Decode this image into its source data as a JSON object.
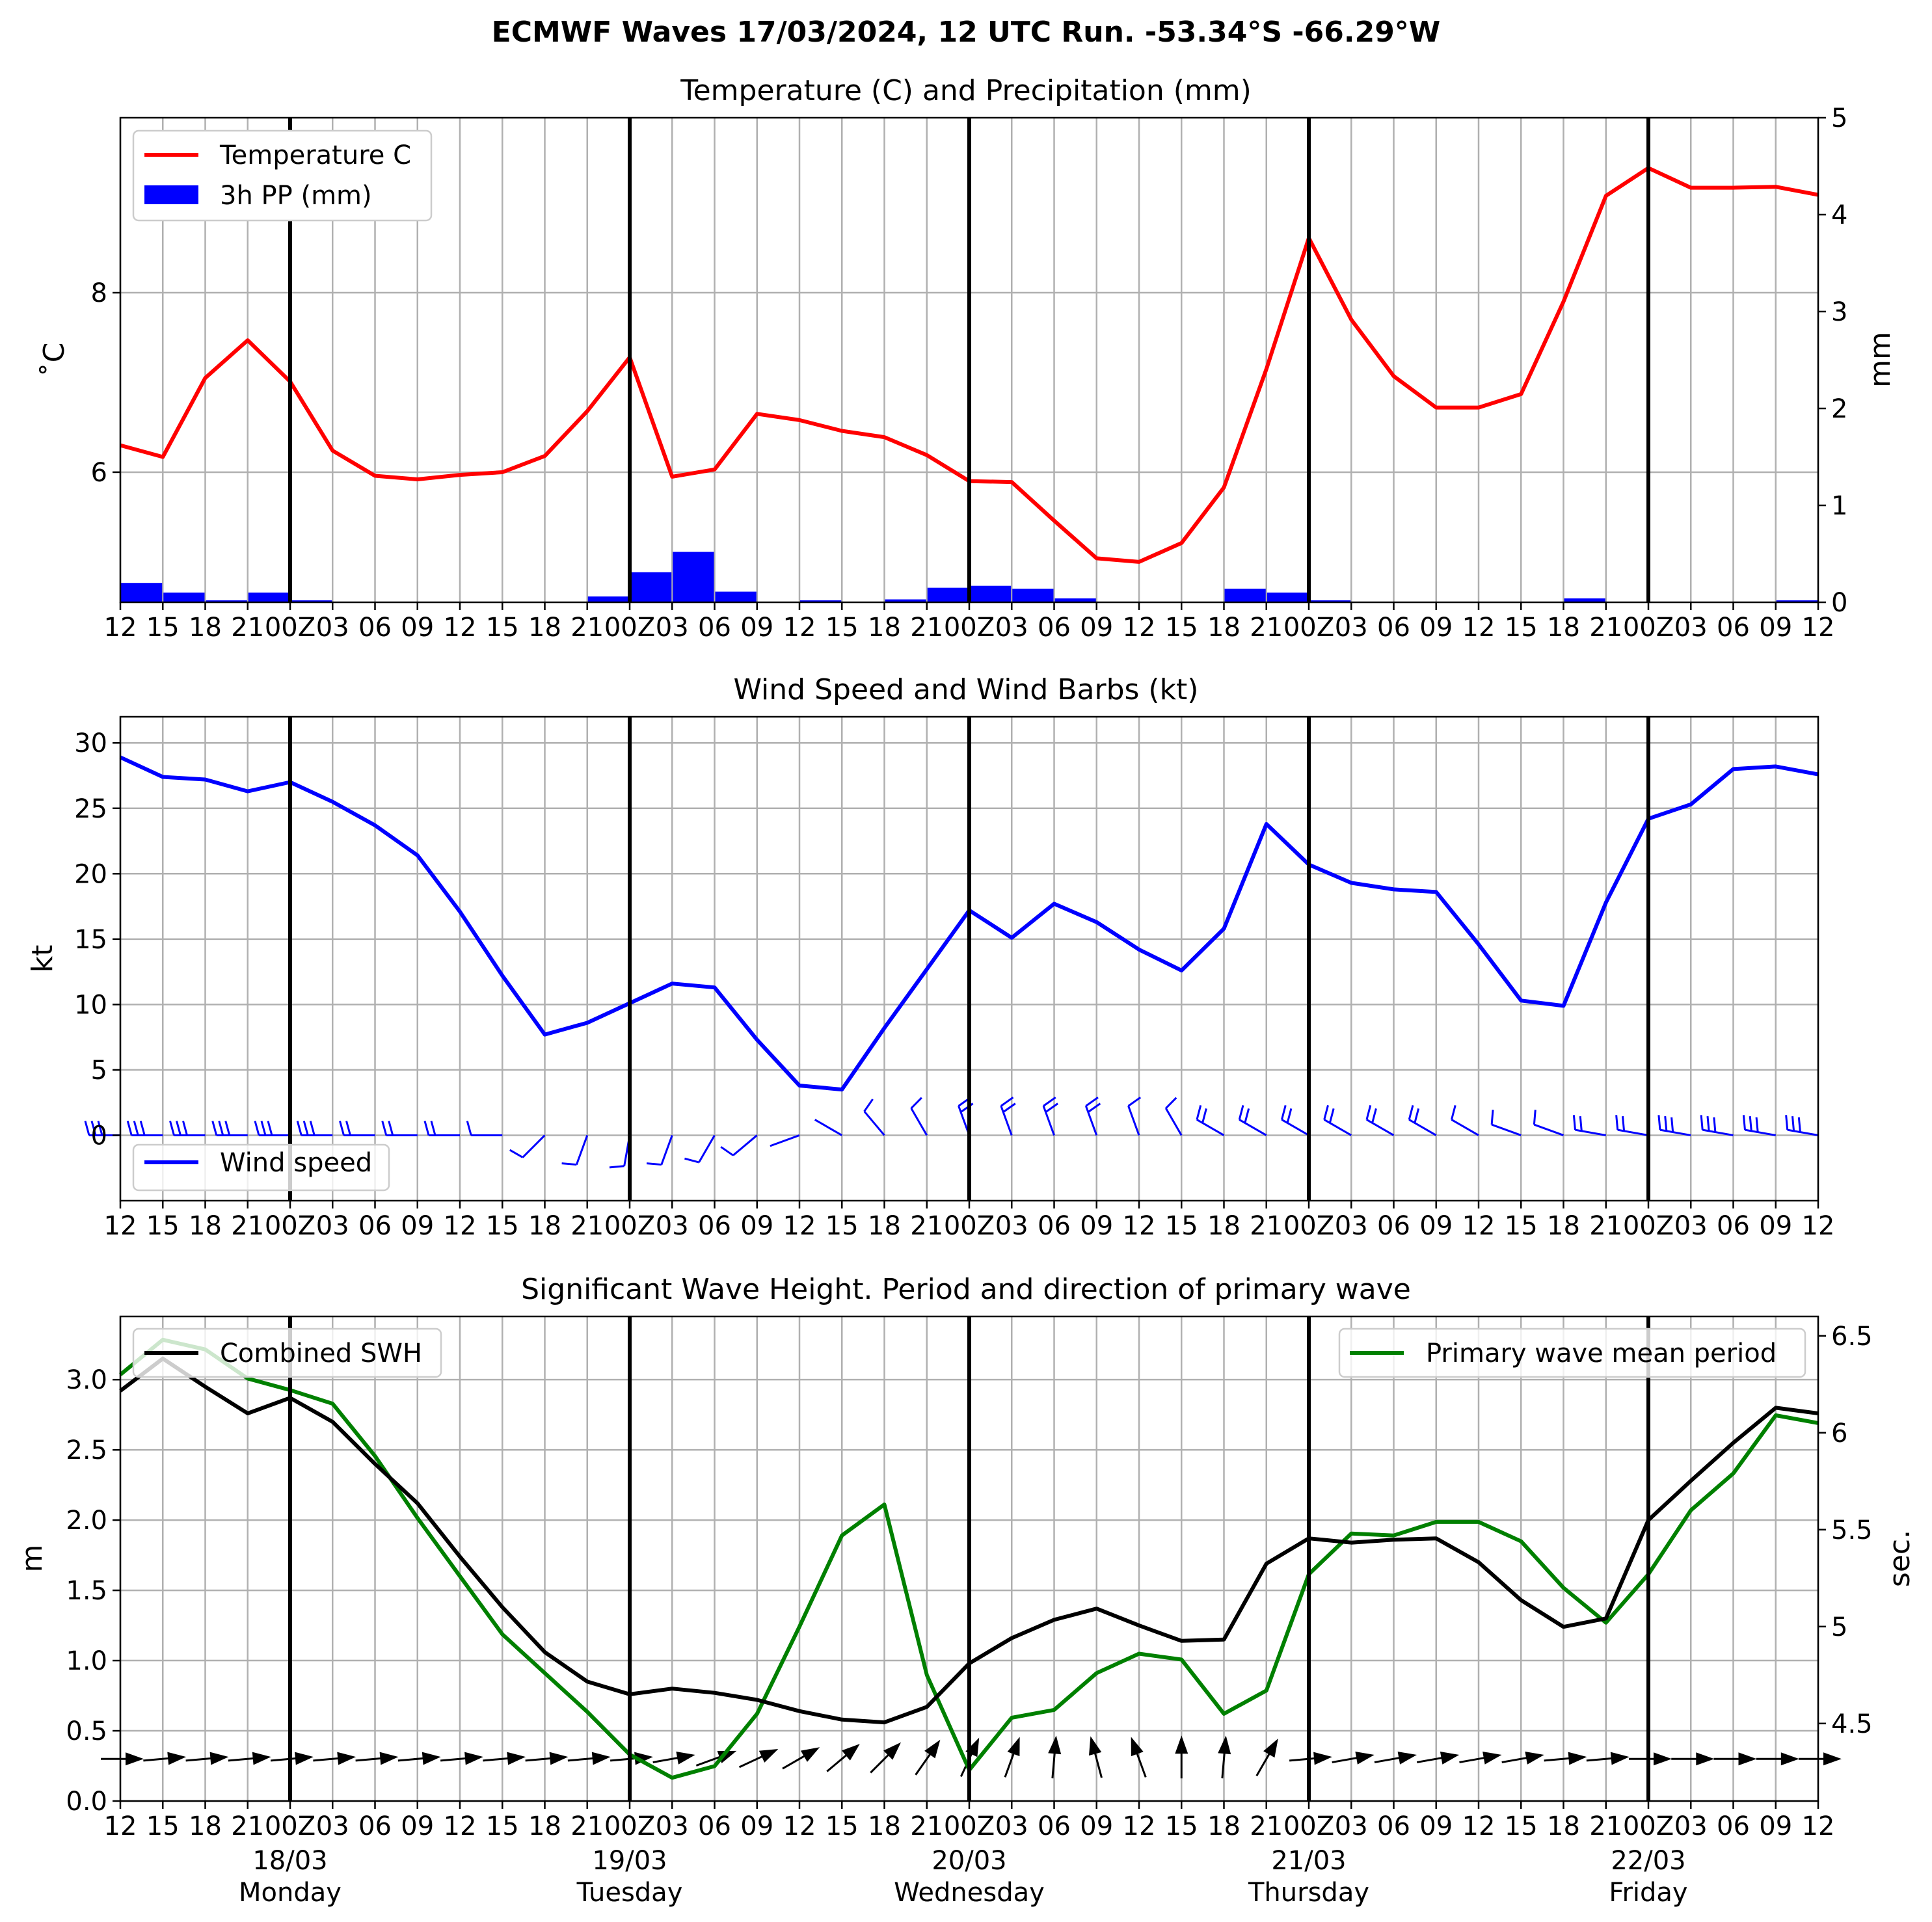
{
  "title": "ECMWF Waves 17/03/2024, 12 UTC Run. -53.34°S -66.29°W",
  "x_tick_labels": [
    "12",
    "15",
    "18",
    "21",
    "00Z",
    "03",
    "06",
    "09",
    "12",
    "15",
    "18",
    "21",
    "00Z",
    "03",
    "06",
    "09",
    "12",
    "15",
    "18",
    "21",
    "00Z",
    "03",
    "06",
    "09",
    "12",
    "15",
    "18",
    "21",
    "00Z",
    "03",
    "06",
    "09",
    "12",
    "15",
    "18",
    "21",
    "00Z",
    "03",
    "06",
    "09",
    "12"
  ],
  "day_labels": [
    {
      "date": "18/03",
      "day": "Monday",
      "step": 4
    },
    {
      "date": "19/03",
      "day": "Tuesday",
      "step": 12
    },
    {
      "date": "20/03",
      "day": "Wednesday",
      "step": 20
    },
    {
      "date": "21/03",
      "day": "Thursday",
      "step": 28
    },
    {
      "date": "22/03",
      "day": "Friday",
      "step": 36
    }
  ],
  "colors": {
    "temperature": "#ff0000",
    "precip": "#0000ff",
    "wind": "#0000ff",
    "swh": "#000000",
    "period": "#008000"
  },
  "chart_data": [
    {
      "type": "line",
      "title": "Temperature (C) and Precipitation (mm)",
      "ylabel": "$^\\circ$C",
      "ylabel_display": "˚C",
      "ylabel_right": "mm",
      "ylim": [
        4.55,
        9.95
      ],
      "ylim_right": [
        0,
        5
      ],
      "yticks": [
        6,
        8
      ],
      "yticks_right": [
        0,
        1,
        2,
        3,
        4,
        5
      ],
      "legend_placement": "top-left",
      "grid": true,
      "series": [
        {
          "name": "Temperature C",
          "axis": "left",
          "values": [
            6.3,
            6.17,
            7.05,
            7.47,
            7.01,
            6.24,
            5.96,
            5.92,
            5.97,
            6.0,
            6.18,
            6.68,
            7.28,
            5.95,
            6.03,
            6.65,
            6.58,
            6.46,
            6.39,
            6.19,
            5.9,
            5.89,
            5.46,
            5.04,
            5.0,
            5.21,
            5.83,
            7.15,
            8.61,
            7.7,
            7.07,
            6.72,
            6.72,
            6.87,
            7.9,
            9.08,
            9.39,
            9.17,
            9.17,
            9.18,
            9.09
          ]
        },
        {
          "name": "3h PP (mm)",
          "axis": "right",
          "kind": "bar",
          "values": [
            0.2,
            0.1,
            0.02,
            0.1,
            0.02,
            0,
            0,
            0,
            0,
            0,
            0,
            0.06,
            0.31,
            0.52,
            0.11,
            0,
            0.02,
            0,
            0.03,
            0.15,
            0.17,
            0.14,
            0.04,
            0,
            0,
            0,
            0.14,
            0.1,
            0.02,
            0,
            0,
            0,
            0,
            0,
            0.04,
            0,
            0,
            0,
            0,
            0.02
          ]
        }
      ]
    },
    {
      "type": "line",
      "title": "Wind Speed and Wind Barbs (kt)",
      "ylabel": "kt",
      "ylim": [
        -5,
        32
      ],
      "yticks": [
        0,
        5,
        10,
        15,
        20,
        25,
        30
      ],
      "legend_placement": "bottom-left",
      "grid": true,
      "series": [
        {
          "name": "Wind speed",
          "values": [
            28.9,
            27.4,
            27.2,
            26.3,
            27.0,
            25.5,
            23.7,
            21.4,
            17.1,
            12.2,
            7.7,
            8.6,
            10.1,
            11.6,
            11.3,
            7.3,
            3.8,
            3.5,
            8.2,
            12.7,
            17.2,
            15.1,
            17.7,
            16.3,
            14.2,
            12.6,
            15.8,
            23.8,
            20.7,
            19.3,
            18.8,
            18.6,
            14.6,
            10.3,
            9.9,
            17.8,
            24.2,
            25.3,
            28.0,
            28.2,
            27.6
          ]
        }
      ],
      "barb_direction_deg": [
        270,
        270,
        270,
        270,
        270,
        270,
        270,
        270,
        270,
        270,
        225,
        200,
        190,
        200,
        210,
        230,
        250,
        300,
        320,
        330,
        340,
        340,
        340,
        340,
        340,
        330,
        300,
        300,
        300,
        300,
        300,
        300,
        300,
        290,
        290,
        280,
        280,
        280,
        280,
        280,
        280
      ]
    },
    {
      "type": "line",
      "title": "Significant Wave Height. Period and direction of primary wave",
      "ylabel": "m",
      "ylabel_right": "sec.",
      "ylim": [
        0,
        3.45
      ],
      "ylim_right": [
        4.1,
        6.6
      ],
      "yticks": [
        0.0,
        0.5,
        1.0,
        1.5,
        2.0,
        2.5,
        3.0
      ],
      "yticks_right": [
        4.5,
        5.0,
        5.5,
        6.0,
        6.5
      ],
      "grid": true,
      "series": [
        {
          "name": "Combined SWH",
          "axis": "left",
          "legend": "top-left",
          "values": [
            2.92,
            3.15,
            2.95,
            2.76,
            2.87,
            2.7,
            2.4,
            2.12,
            1.74,
            1.38,
            1.06,
            0.85,
            0.76,
            0.8,
            0.77,
            0.72,
            0.64,
            0.58,
            0.56,
            0.67,
            0.98,
            1.16,
            1.29,
            1.37,
            1.25,
            1.14,
            1.15,
            1.69,
            1.87,
            1.84,
            1.86,
            1.87,
            1.7,
            1.43,
            1.24,
            1.3,
            2.0,
            2.28,
            2.55,
            2.8,
            2.76
          ]
        },
        {
          "name": "Primary wave mean period",
          "axis": "right",
          "legend": "top-right",
          "values": [
            6.3,
            6.48,
            6.43,
            6.28,
            6.22,
            6.15,
            5.88,
            5.56,
            5.26,
            4.96,
            4.76,
            4.56,
            4.34,
            4.22,
            4.28,
            4.55,
            5.0,
            5.47,
            5.63,
            4.75,
            4.26,
            4.53,
            4.57,
            4.76,
            4.86,
            4.83,
            4.55,
            4.67,
            5.27,
            5.48,
            5.47,
            5.54,
            5.54,
            5.44,
            5.2,
            5.02,
            5.27,
            5.6,
            5.79,
            6.09,
            6.05
          ]
        }
      ],
      "wave_direction_deg": [
        270,
        265,
        265,
        265,
        265,
        265,
        265,
        265,
        265,
        265,
        265,
        265,
        265,
        260,
        250,
        245,
        240,
        230,
        225,
        215,
        205,
        200,
        185,
        165,
        160,
        180,
        185,
        210,
        265,
        260,
        260,
        260,
        260,
        260,
        265,
        265,
        270,
        270,
        270,
        270,
        270
      ]
    }
  ]
}
